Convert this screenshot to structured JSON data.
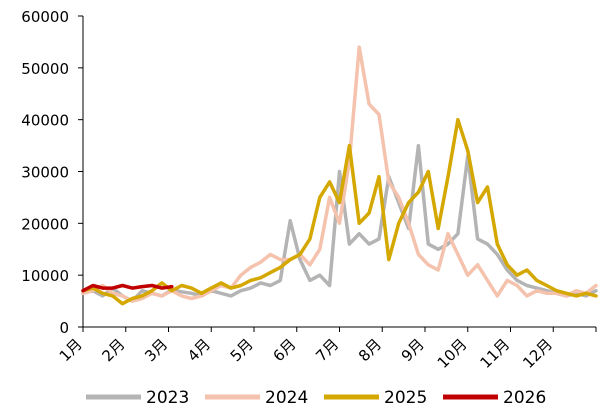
{
  "chart_data": {
    "type": "line",
    "title": "",
    "xlabel": "",
    "ylabel": "",
    "ylim": [
      0,
      60000
    ],
    "y_ticks": [
      0,
      10000,
      20000,
      30000,
      40000,
      50000,
      60000
    ],
    "x_ticks": [
      "1月",
      "2月",
      "3月",
      "4月",
      "5月",
      "6月",
      "7月",
      "8月",
      "9月",
      "10月",
      "11月",
      "12月"
    ],
    "x_unit": "week of year (1-53)",
    "grid": false,
    "legend_position": "bottom",
    "series": [
      {
        "name": "2023",
        "color": "#b4b4b4",
        "values": [
          [
            1,
            6500
          ],
          [
            2,
            7000
          ],
          [
            3,
            6000
          ],
          [
            4,
            7500
          ],
          [
            5,
            6000
          ],
          [
            6,
            5000
          ],
          [
            7,
            7000
          ],
          [
            8,
            6500
          ],
          [
            9,
            6000
          ],
          [
            10,
            7200
          ],
          [
            11,
            6800
          ],
          [
            12,
            6500
          ],
          [
            13,
            6000
          ],
          [
            14,
            7000
          ],
          [
            15,
            6500
          ],
          [
            16,
            6000
          ],
          [
            17,
            7000
          ],
          [
            18,
            7500
          ],
          [
            19,
            8500
          ],
          [
            20,
            8000
          ],
          [
            21,
            9000
          ],
          [
            22,
            20500
          ],
          [
            23,
            13000
          ],
          [
            24,
            9000
          ],
          [
            25,
            10000
          ],
          [
            26,
            8000
          ],
          [
            27,
            30000
          ],
          [
            28,
            16000
          ],
          [
            29,
            18000
          ],
          [
            30,
            16000
          ],
          [
            31,
            17000
          ],
          [
            32,
            29000
          ],
          [
            33,
            24000
          ],
          [
            34,
            19000
          ],
          [
            35,
            35000
          ],
          [
            36,
            16000
          ],
          [
            37,
            15000
          ],
          [
            38,
            16000
          ],
          [
            39,
            18000
          ],
          [
            40,
            33000
          ],
          [
            41,
            17000
          ],
          [
            42,
            16000
          ],
          [
            43,
            14000
          ],
          [
            44,
            11000
          ],
          [
            45,
            9000
          ],
          [
            46,
            8000
          ],
          [
            47,
            7500
          ],
          [
            48,
            7000
          ],
          [
            49,
            6500
          ],
          [
            50,
            6000
          ],
          [
            51,
            6500
          ],
          [
            52,
            6000
          ],
          [
            53,
            7000
          ]
        ]
      },
      {
        "name": "2024",
        "color": "#f4c2ad",
        "values": [
          [
            1,
            6500
          ],
          [
            2,
            7000
          ],
          [
            3,
            8000
          ],
          [
            4,
            6500
          ],
          [
            5,
            6000
          ],
          [
            6,
            5000
          ],
          [
            7,
            5500
          ],
          [
            8,
            6500
          ],
          [
            9,
            6000
          ],
          [
            10,
            7000
          ],
          [
            11,
            6000
          ],
          [
            12,
            5500
          ],
          [
            13,
            6000
          ],
          [
            14,
            7000
          ],
          [
            15,
            8000
          ],
          [
            16,
            7500
          ],
          [
            17,
            10000
          ],
          [
            18,
            11500
          ],
          [
            19,
            12500
          ],
          [
            20,
            14000
          ],
          [
            21,
            13000
          ],
          [
            22,
            13000
          ],
          [
            23,
            14000
          ],
          [
            24,
            12000
          ],
          [
            25,
            15000
          ],
          [
            26,
            25000
          ],
          [
            27,
            20000
          ],
          [
            28,
            32000
          ],
          [
            29,
            54000
          ],
          [
            30,
            43000
          ],
          [
            31,
            41000
          ],
          [
            32,
            28000
          ],
          [
            33,
            25000
          ],
          [
            34,
            20000
          ],
          [
            35,
            14000
          ],
          [
            36,
            12000
          ],
          [
            37,
            11000
          ],
          [
            38,
            18000
          ],
          [
            39,
            14000
          ],
          [
            40,
            10000
          ],
          [
            41,
            12000
          ],
          [
            42,
            9000
          ],
          [
            43,
            6000
          ],
          [
            44,
            9000
          ],
          [
            45,
            8000
          ],
          [
            46,
            6000
          ],
          [
            47,
            7000
          ],
          [
            48,
            6500
          ],
          [
            49,
            6500
          ],
          [
            50,
            6000
          ],
          [
            51,
            7000
          ],
          [
            52,
            6500
          ],
          [
            53,
            8000
          ]
        ]
      },
      {
        "name": "2025",
        "color": "#d4a800",
        "values": [
          [
            1,
            7000
          ],
          [
            2,
            7500
          ],
          [
            3,
            6500
          ],
          [
            4,
            6000
          ],
          [
            5,
            4500
          ],
          [
            6,
            5500
          ],
          [
            7,
            6000
          ],
          [
            8,
            7000
          ],
          [
            9,
            8500
          ],
          [
            10,
            7000
          ],
          [
            11,
            8000
          ],
          [
            12,
            7500
          ],
          [
            13,
            6500
          ],
          [
            14,
            7500
          ],
          [
            15,
            8500
          ],
          [
            16,
            7500
          ],
          [
            17,
            8000
          ],
          [
            18,
            9000
          ],
          [
            19,
            9500
          ],
          [
            20,
            10500
          ],
          [
            21,
            11500
          ],
          [
            22,
            13000
          ],
          [
            23,
            14000
          ],
          [
            24,
            17000
          ],
          [
            25,
            25000
          ],
          [
            26,
            28000
          ],
          [
            27,
            24000
          ],
          [
            28,
            35000
          ],
          [
            29,
            20000
          ],
          [
            30,
            22000
          ],
          [
            31,
            29000
          ],
          [
            32,
            13000
          ],
          [
            33,
            20000
          ],
          [
            34,
            24000
          ],
          [
            35,
            26000
          ],
          [
            36,
            30000
          ],
          [
            37,
            19000
          ],
          [
            38,
            29000
          ],
          [
            39,
            40000
          ],
          [
            40,
            34000
          ],
          [
            41,
            24000
          ],
          [
            42,
            27000
          ],
          [
            43,
            16000
          ],
          [
            44,
            12000
          ],
          [
            45,
            10000
          ],
          [
            46,
            11000
          ],
          [
            47,
            9000
          ],
          [
            48,
            8000
          ],
          [
            49,
            7000
          ],
          [
            50,
            6500
          ],
          [
            51,
            6000
          ],
          [
            52,
            6500
          ],
          [
            53,
            6000
          ]
        ]
      },
      {
        "name": "2026",
        "color": "#c00000",
        "values": [
          [
            1,
            7000
          ],
          [
            2,
            8000
          ],
          [
            3,
            7500
          ],
          [
            4,
            7500
          ],
          [
            5,
            8000
          ],
          [
            6,
            7500
          ],
          [
            7,
            7800
          ],
          [
            8,
            8000
          ],
          [
            9,
            7500
          ],
          [
            10,
            7800
          ]
        ]
      }
    ]
  }
}
